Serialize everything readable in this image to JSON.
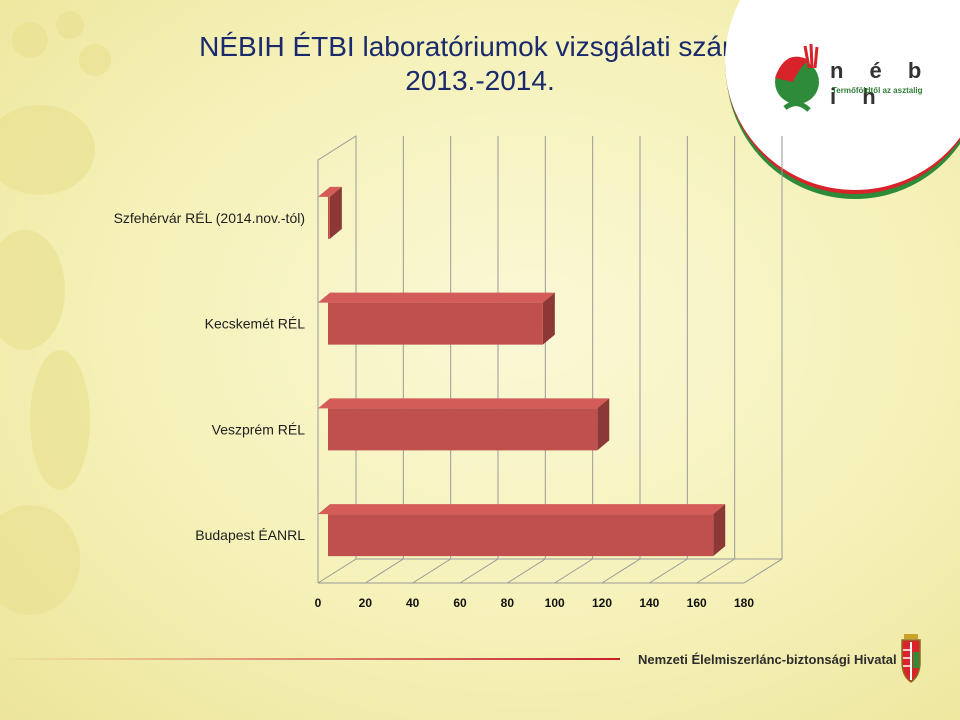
{
  "slide": {
    "title_line1": "NÉBIH ÉTBI laboratóriumok vizsgálati száma",
    "title_line2": "2013.-2014."
  },
  "logo": {
    "name": "n é b i h",
    "tagline": "Termőföldtől az asztalig"
  },
  "footer": {
    "org": "Nemzeti Élelmiszerlánc-biztonsági Hivatal"
  },
  "colors": {
    "bar_front": "#c0504d",
    "bar_top": "#d35b58",
    "bar_side": "#8c3836",
    "title": "#1a2a6c"
  },
  "chart_data": {
    "type": "bar",
    "orientation": "horizontal",
    "categories": [
      "Szfehérvár RÉL (2014.nov.-tól)",
      "Kecskemét RÉL",
      "Veszprém RÉL",
      "Budapest ÉANRL"
    ],
    "values": [
      5,
      95,
      118,
      167
    ],
    "xlim": [
      0,
      180
    ],
    "xticks": [
      0,
      20,
      40,
      60,
      80,
      100,
      120,
      140,
      160,
      180
    ],
    "title": "",
    "xlabel": "",
    "ylabel": "",
    "grid": true,
    "legend": "none"
  }
}
